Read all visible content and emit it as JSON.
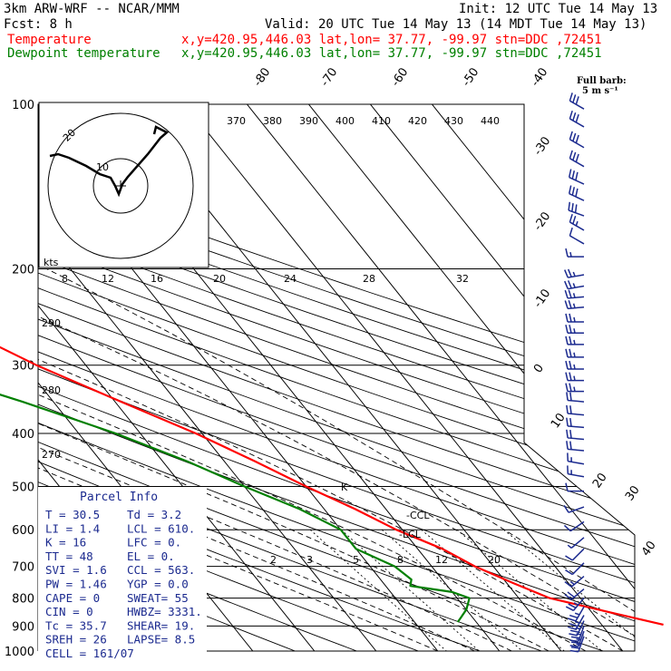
{
  "header": {
    "model": "3km ARW-WRF -- NCAR/MMM",
    "init": "Init: 12 UTC Tue 14 May 13",
    "fcst": "Fcst:     8 h",
    "valid": "Valid: 20 UTC Tue 14 May 13 (14 MDT Tue 14 May 13)",
    "temp_label": "Temperature",
    "temp_info": "x,y=420.95,446.03   lat,lon= 37.77, -99.97   stn=DDC ,72451",
    "dew_label": "Dewpoint temperature",
    "dew_info": "x,y=420.95,446.03   lat,lon= 37.77, -99.97   stn=DDC ,72451",
    "barb_key": "Full barb:",
    "barb_key_units": "5 m s⁻¹"
  },
  "colors": {
    "temperature": "#ff0000",
    "dewpoint": "#008000",
    "parcel_text": "#1b2a8f",
    "barbs": "#1b2a8f"
  },
  "chart_data": {
    "type": "skew-T log-P sounding",
    "y_axis": "pressure (hPa)",
    "pressure_levels": [
      100,
      200,
      300,
      400,
      500,
      600,
      700,
      800,
      900,
      1000
    ],
    "isotherm_labels": [
      -80,
      -70,
      -60,
      -50,
      -40,
      -30,
      -20,
      -10,
      0,
      10,
      20,
      30,
      40
    ],
    "theta_labels_top": [
      370,
      380,
      390,
      400,
      410,
      420,
      430,
      440
    ],
    "theta_labels_left": [
      290,
      280,
      270
    ],
    "mixing_ratio_labels": [
      "2",
      "3",
      "5",
      "8",
      "12",
      "20"
    ],
    "lcl_marks": [
      "CCL",
      "LCL"
    ],
    "series": [
      {
        "name": "Temperature",
        "color": "#ff0000",
        "points": [
          [
            100,
            -68
          ],
          [
            120,
            -62
          ],
          [
            150,
            -56
          ],
          [
            170,
            -53
          ],
          [
            190,
            -52
          ],
          [
            200,
            -52
          ],
          [
            230,
            -48
          ],
          [
            270,
            -43
          ],
          [
            300,
            -38
          ],
          [
            350,
            -29
          ],
          [
            400,
            -21
          ],
          [
            450,
            -15
          ],
          [
            500,
            -10
          ],
          [
            550,
            -5
          ],
          [
            600,
            -1
          ],
          [
            650,
            4
          ],
          [
            700,
            7
          ],
          [
            750,
            11
          ],
          [
            800,
            15
          ],
          [
            850,
            23
          ],
          [
            895,
            30
          ]
        ]
      },
      {
        "name": "Dewpoint temperature",
        "color": "#008000",
        "points": [
          [
            100,
            -83
          ],
          [
            120,
            -81
          ],
          [
            150,
            -79
          ],
          [
            170,
            -78
          ],
          [
            200,
            -77
          ],
          [
            230,
            -77
          ],
          [
            250,
            -74
          ],
          [
            280,
            -66
          ],
          [
            300,
            -59
          ],
          [
            350,
            -45
          ],
          [
            400,
            -34
          ],
          [
            450,
            -26
          ],
          [
            500,
            -20
          ],
          [
            550,
            -14
          ],
          [
            600,
            -10
          ],
          [
            650,
            -10
          ],
          [
            700,
            -6
          ],
          [
            740,
            -5
          ],
          [
            760,
            -6
          ],
          [
            780,
            0
          ],
          [
            800,
            2
          ],
          [
            840,
            0
          ],
          [
            870,
            -2
          ],
          [
            885,
            -3
          ]
        ]
      }
    ],
    "hodograph": {
      "units": "kts",
      "ring_labels": [
        "10",
        "20"
      ],
      "scale_labels": [
        "8",
        "12",
        "16",
        "20",
        "24",
        "28",
        "32"
      ]
    },
    "wind_barbs": [
      {
        "p": 102,
        "dir": 300,
        "spd": 30
      },
      {
        "p": 110,
        "dir": 300,
        "spd": 30
      },
      {
        "p": 120,
        "dir": 300,
        "spd": 32
      },
      {
        "p": 130,
        "dir": 300,
        "spd": 32
      },
      {
        "p": 140,
        "dir": 295,
        "spd": 32
      },
      {
        "p": 150,
        "dir": 295,
        "spd": 30
      },
      {
        "p": 160,
        "dir": 290,
        "spd": 28
      },
      {
        "p": 170,
        "dir": 300,
        "spd": 25
      },
      {
        "p": 180,
        "dir": 300,
        "spd": 10
      },
      {
        "p": 190,
        "dir": 270,
        "spd": 15
      },
      {
        "p": 205,
        "dir": 260,
        "spd": 25
      },
      {
        "p": 215,
        "dir": 260,
        "spd": 25
      },
      {
        "p": 225,
        "dir": 265,
        "spd": 25
      },
      {
        "p": 235,
        "dir": 265,
        "spd": 25
      },
      {
        "p": 250,
        "dir": 270,
        "spd": 25
      },
      {
        "p": 262,
        "dir": 270,
        "spd": 25
      },
      {
        "p": 275,
        "dir": 270,
        "spd": 25
      },
      {
        "p": 290,
        "dir": 270,
        "spd": 25
      },
      {
        "p": 305,
        "dir": 270,
        "spd": 25
      },
      {
        "p": 320,
        "dir": 270,
        "spd": 25
      },
      {
        "p": 335,
        "dir": 270,
        "spd": 25
      },
      {
        "p": 350,
        "dir": 275,
        "spd": 20
      },
      {
        "p": 370,
        "dir": 275,
        "spd": 20
      },
      {
        "p": 390,
        "dir": 275,
        "spd": 20
      },
      {
        "p": 410,
        "dir": 275,
        "spd": 20
      },
      {
        "p": 430,
        "dir": 275,
        "spd": 20
      },
      {
        "p": 455,
        "dir": 280,
        "spd": 15
      },
      {
        "p": 480,
        "dir": 280,
        "spd": 15
      },
      {
        "p": 510,
        "dir": 270,
        "spd": 10
      },
      {
        "p": 545,
        "dir": 250,
        "spd": 10
      },
      {
        "p": 580,
        "dir": 235,
        "spd": 10
      },
      {
        "p": 620,
        "dir": 230,
        "spd": 5
      },
      {
        "p": 650,
        "dir": 225,
        "spd": 10
      },
      {
        "p": 690,
        "dir": 225,
        "spd": 10
      },
      {
        "p": 730,
        "dir": 230,
        "spd": 15
      },
      {
        "p": 770,
        "dir": 230,
        "spd": 20
      },
      {
        "p": 800,
        "dir": 220,
        "spd": 25
      },
      {
        "p": 830,
        "dir": 210,
        "spd": 25
      },
      {
        "p": 860,
        "dir": 210,
        "spd": 25
      },
      {
        "p": 880,
        "dir": 205,
        "spd": 25
      },
      {
        "p": 900,
        "dir": 200,
        "spd": 25
      },
      {
        "p": 920,
        "dir": 200,
        "spd": 25
      },
      {
        "p": 940,
        "dir": 200,
        "spd": 25
      }
    ]
  },
  "parcel_info": {
    "title": "Parcel Info",
    "rows": [
      [
        "T  =    30.5",
        "Td =   3.2"
      ],
      [
        "LI =     1.4",
        "LCL =  610."
      ],
      [
        "K  =      16",
        "LFC =    0."
      ],
      [
        "TT =      48",
        "EL  =    0."
      ],
      [
        "SVI =    1.6",
        "CCL =  563."
      ],
      [
        "PW =    1.46",
        "YGP =   0.0"
      ],
      [
        "CAPE =     0",
        "SWEAT=   55"
      ],
      [
        "CIN =      0",
        "HWBZ= 3331."
      ],
      [
        "Tc =    35.7",
        "SHEAR=  19."
      ],
      [
        "SREH =    26",
        "LAPSE=  8.5"
      ],
      [
        "CELL = 161/07",
        ""
      ]
    ]
  }
}
